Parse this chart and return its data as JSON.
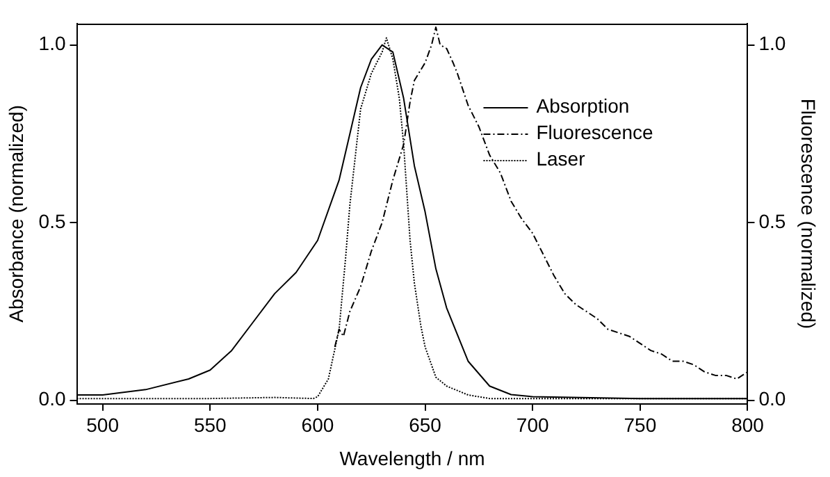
{
  "chart_data": {
    "type": "line",
    "xlabel": "Wavelength / nm",
    "ylabel": "Absorbance (normalized)",
    "y2label": "Fluorescence (normalized)",
    "xlim": [
      488,
      800
    ],
    "xticks": [
      500,
      550,
      600,
      650,
      700,
      750,
      800
    ],
    "ylim": [
      -0.01,
      1.06
    ],
    "yticks": [
      {
        "value": 0,
        "label": "0.0"
      },
      0.5,
      {
        "value": 1,
        "label": "1.0"
      }
    ],
    "y2lim": [
      -0.01,
      1.06
    ],
    "y2ticks": [
      {
        "value": 0,
        "label": "0.0"
      },
      0.5,
      {
        "value": 1,
        "label": "1.0"
      }
    ],
    "grid": false,
    "legend": "top right",
    "marker": "none",
    "series": [
      {
        "name": "Absorption",
        "color": "#000000",
        "line_style": "solid",
        "x": [
          488,
          500,
          520,
          540,
          550,
          560,
          570,
          580,
          590,
          600,
          610,
          615,
          620,
          625,
          630,
          635,
          640,
          645,
          650,
          655,
          660,
          670,
          680,
          690,
          700,
          750,
          800
        ],
        "values": [
          0.015,
          0.015,
          0.03,
          0.06,
          0.085,
          0.14,
          0.22,
          0.3,
          0.36,
          0.45,
          0.62,
          0.75,
          0.88,
          0.96,
          1.0,
          0.98,
          0.85,
          0.66,
          0.53,
          0.37,
          0.26,
          0.11,
          0.04,
          0.016,
          0.01,
          0.005,
          0.005
        ]
      },
      {
        "name": "Fluorescence",
        "color": "#000000",
        "line_style": "dashed",
        "axis": "y2",
        "x": [
          608,
          610,
          612,
          615,
          620,
          625,
          630,
          635,
          640,
          643,
          645,
          650,
          653,
          655,
          657,
          660,
          663,
          665,
          670,
          675,
          680,
          685,
          690,
          695,
          700,
          705,
          710,
          712,
          715,
          720,
          725,
          730,
          735,
          740,
          745,
          750,
          755,
          760,
          765,
          770,
          775,
          780,
          785,
          790,
          795,
          800
        ],
        "values": [
          0.15,
          0.2,
          0.18,
          0.25,
          0.32,
          0.42,
          0.5,
          0.62,
          0.72,
          0.84,
          0.9,
          0.95,
          1.0,
          1.05,
          1.0,
          0.99,
          0.95,
          0.92,
          0.83,
          0.77,
          0.69,
          0.64,
          0.56,
          0.51,
          0.47,
          0.41,
          0.35,
          0.33,
          0.3,
          0.27,
          0.25,
          0.23,
          0.2,
          0.19,
          0.18,
          0.16,
          0.14,
          0.13,
          0.11,
          0.11,
          0.1,
          0.08,
          0.07,
          0.07,
          0.06,
          0.08
        ]
      },
      {
        "name": "Laser",
        "color": "#000000",
        "line_style": "dotted",
        "x": [
          488,
          520,
          550,
          580,
          598,
          600,
          605,
          610,
          613,
          615,
          620,
          625,
          630,
          632,
          635,
          638,
          640,
          643,
          645,
          648,
          650,
          655,
          660,
          670,
          680,
          800
        ],
        "values": [
          0.005,
          0.005,
          0.005,
          0.008,
          0.005,
          0.01,
          0.06,
          0.2,
          0.4,
          0.55,
          0.82,
          0.92,
          0.98,
          1.02,
          0.96,
          0.85,
          0.72,
          0.45,
          0.33,
          0.21,
          0.15,
          0.065,
          0.04,
          0.015,
          0.005,
          0.005
        ]
      }
    ]
  }
}
